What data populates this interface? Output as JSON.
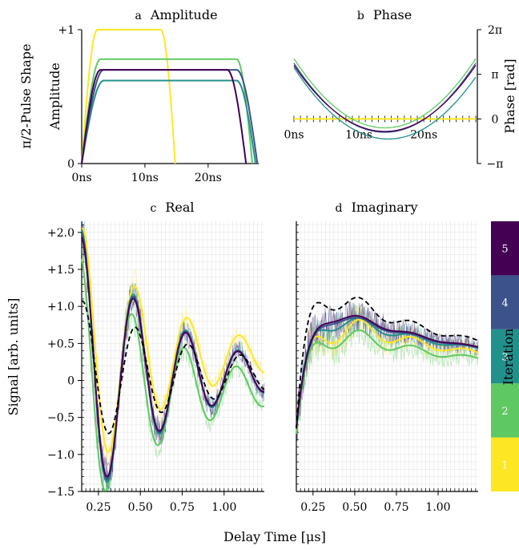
{
  "figure": {
    "xlabel_shared": "Delay Time [μs]",
    "ylabel_shared": "Signal [arb. units]",
    "colorbar": {
      "label": "Iteration",
      "levels": [
        "1",
        "2",
        "3",
        "4",
        "5"
      ],
      "colors": [
        "#fde725",
        "#5ec962",
        "#21918c",
        "#3b528b",
        "#440154"
      ]
    }
  },
  "chart_data": [
    {
      "id": "a",
      "type": "line",
      "panel_letter": "a",
      "title": "Amplitude",
      "ylabel": "Amplitude",
      "ylabel_outer": "π/2-Pulse Shape",
      "xlim": [
        0,
        28
      ],
      "ylim": [
        0,
        1
      ],
      "xticks": [
        0,
        10,
        20
      ],
      "xticklabels": [
        "0ns",
        "10ns",
        "20ns"
      ],
      "yticks": [
        0,
        1
      ],
      "yticklabels": [
        "0",
        "+1"
      ],
      "series": [
        {
          "iteration": 1,
          "color": "#fde725",
          "rise_end": 2.5,
          "fall_start": 12.5,
          "end": 14.8,
          "plateau": 1.0
        },
        {
          "iteration": 2,
          "color": "#5ec962",
          "rise_end": 3.0,
          "fall_start": 24.5,
          "end": 27.0,
          "plateau": 0.78
        },
        {
          "iteration": 3,
          "color": "#21918c",
          "rise_end": 3.5,
          "fall_start": 24.5,
          "end": 27.5,
          "plateau": 0.62
        },
        {
          "iteration": 4,
          "color": "#3b528b",
          "rise_end": 3.5,
          "fall_start": 24.5,
          "end": 27.8,
          "plateau": 0.7
        },
        {
          "iteration": 5,
          "color": "#440154",
          "rise_end": 3.0,
          "fall_start": 23.0,
          "end": 26.0,
          "plateau": 0.7
        }
      ]
    },
    {
      "id": "b",
      "type": "line",
      "panel_letter": "b",
      "title": "Phase",
      "ylabel": "Phase [rad]",
      "xlim": [
        0,
        28
      ],
      "ylim": [
        -1,
        2
      ],
      "xticks": [
        0,
        10,
        20
      ],
      "xticklabels": [
        "0ns",
        "10ns",
        "20ns"
      ],
      "yticks": [
        -1,
        0,
        1,
        2
      ],
      "yticklabels": [
        "−π",
        "0",
        "π",
        "2π"
      ],
      "series": [
        {
          "iteration": 1,
          "color": "#fde725",
          "flat": 0.0
        },
        {
          "iteration": 2,
          "color": "#5ec962",
          "vertex_x": 14.0,
          "vertex_y": -0.2,
          "edge_y": 1.35
        },
        {
          "iteration": 3,
          "color": "#21918c",
          "vertex_x": 14.5,
          "vertex_y": -0.45,
          "edge_y": 1.15
        },
        {
          "iteration": 4,
          "color": "#3b528b",
          "vertex_x": 14.0,
          "vertex_y": -0.3,
          "edge_y": 1.25
        },
        {
          "iteration": 5,
          "color": "#440154",
          "vertex_x": 14.0,
          "vertex_y": -0.28,
          "edge_y": 1.2
        }
      ]
    },
    {
      "id": "c",
      "type": "line",
      "panel_letter": "c",
      "title": "Real",
      "xlim": [
        0.15,
        1.24
      ],
      "ylim": [
        -1.5,
        2.15
      ],
      "xticks": [
        0.25,
        0.5,
        0.75,
        1.0
      ],
      "xticklabels": [
        "0.25",
        "0.50",
        "0.75",
        "1.00"
      ],
      "yticks": [
        -1.5,
        -1.0,
        -0.5,
        0,
        0.5,
        1.0,
        1.5,
        2.0
      ],
      "yticklabels": [
        "−1.5",
        "−1.0",
        "−0.5",
        "0",
        "+0.5",
        "+1.0",
        "+1.5",
        "+2.0"
      ],
      "target_dashed": {
        "offset": 0.08,
        "amp": 1.0,
        "decay": 1.4,
        "freq": 3.18,
        "phase": -0.15
      },
      "series": [
        {
          "iteration": 1,
          "color": "#fde725",
          "offset": 0.32,
          "amp": 1.75,
          "decay": 1.9,
          "freq": 3.2,
          "phase": -0.15
        },
        {
          "iteration": 2,
          "color": "#5ec962",
          "offset": -0.12,
          "amp": 1.8,
          "decay": 1.9,
          "freq": 3.2,
          "phase": 0.2
        },
        {
          "iteration": 3,
          "color": "#21918c",
          "offset": 0.08,
          "amp": 1.95,
          "decay": 1.9,
          "freq": 3.2,
          "phase": 0.0
        },
        {
          "iteration": 4,
          "color": "#3b528b",
          "offset": 0.08,
          "amp": 1.9,
          "decay": 1.9,
          "freq": 3.2,
          "phase": 0.0
        },
        {
          "iteration": 5,
          "color": "#440154",
          "offset": 0.08,
          "amp": 1.85,
          "decay": 1.9,
          "freq": 3.2,
          "phase": 0.0
        }
      ]
    },
    {
      "id": "d",
      "type": "line",
      "panel_letter": "d",
      "title": "Imaginary",
      "xlim": [
        0.15,
        1.24
      ],
      "ylim": [
        -1.5,
        2.15
      ],
      "xticks": [
        0.25,
        0.5,
        0.75,
        1.0
      ],
      "xticklabels": [
        "0.25",
        "0.50",
        "0.75",
        "1.00"
      ],
      "target_dashed": {
        "offset": 0.25,
        "amp": 0.6,
        "rise": 0.08,
        "decay": 1.4,
        "wiggle": 0.25
      },
      "series": [
        {
          "iteration": 1,
          "color": "#fde725",
          "offset": 0.2,
          "amp": 0.45,
          "rise": 0.11,
          "decay": 1.6,
          "wiggle": 0.3
        },
        {
          "iteration": 2,
          "color": "#5ec962",
          "offset": 0.18,
          "amp": 0.38,
          "rise": 0.1,
          "decay": 1.8,
          "wiggle": 0.25
        },
        {
          "iteration": 3,
          "color": "#21918c",
          "offset": 0.26,
          "amp": 0.45,
          "rise": 0.1,
          "decay": 1.6,
          "wiggle": 0.18
        },
        {
          "iteration": 4,
          "color": "#3b528b",
          "offset": 0.26,
          "amp": 0.48,
          "rise": 0.1,
          "decay": 1.6,
          "wiggle": 0.1
        },
        {
          "iteration": 5,
          "color": "#440154",
          "offset": 0.26,
          "amp": 0.5,
          "rise": 0.1,
          "decay": 1.6,
          "wiggle": 0.1
        }
      ]
    }
  ]
}
